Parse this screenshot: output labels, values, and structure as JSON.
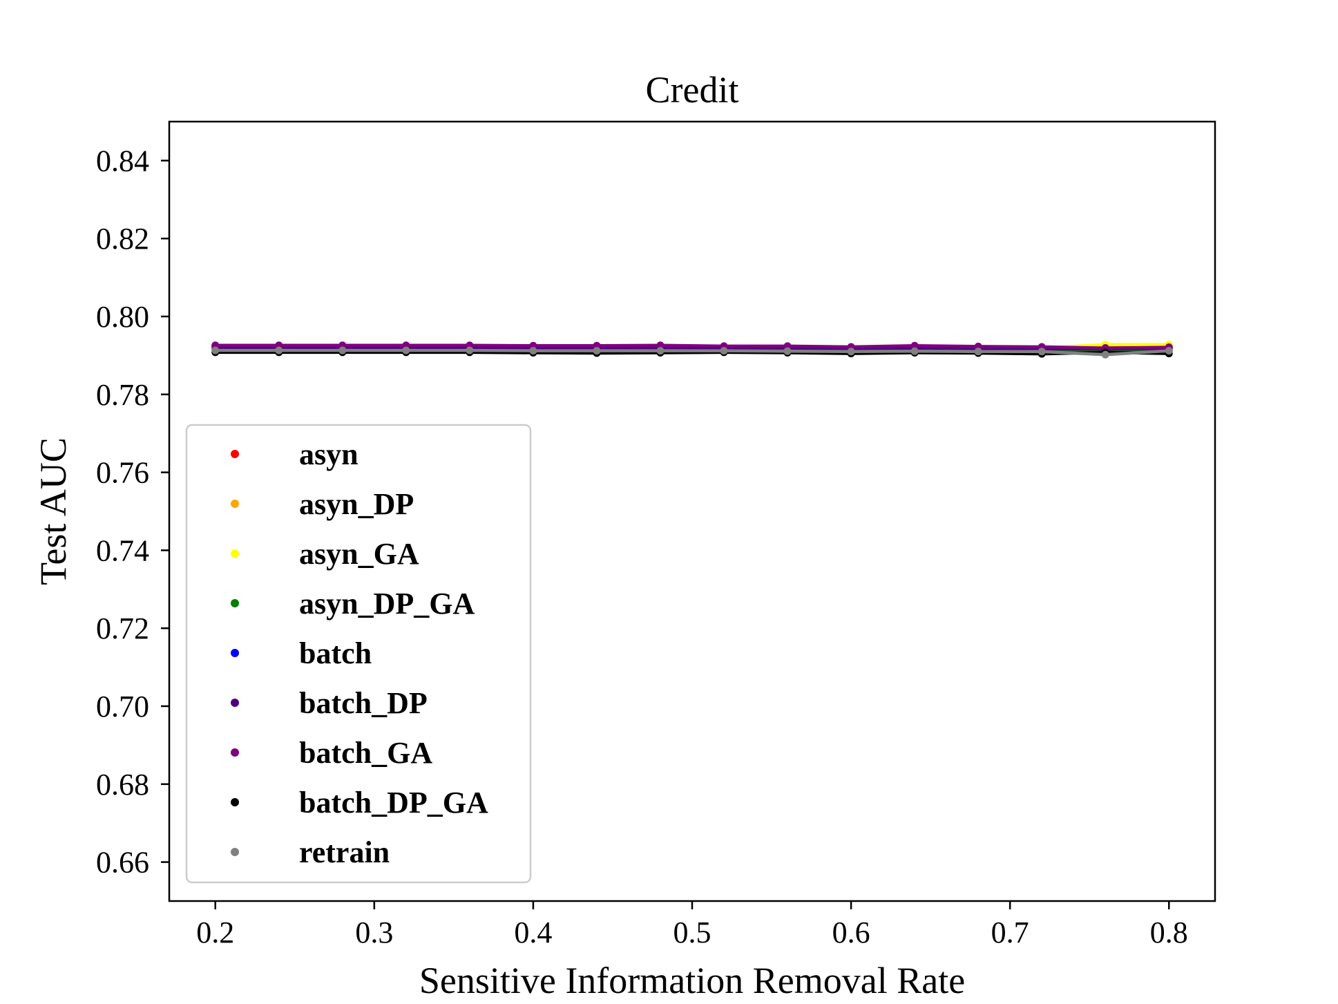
{
  "chart_data": {
    "type": "line",
    "title": "Credit",
    "xlabel": "Sensitive Information Removal Rate",
    "ylabel": "Test AUC",
    "xlim": [
      0.171,
      0.829
    ],
    "ylim": [
      0.65,
      0.85
    ],
    "xticks": [
      0.2,
      0.3,
      0.4,
      0.5,
      0.6,
      0.7,
      0.8
    ],
    "xtick_labels": [
      "0.2",
      "0.3",
      "0.4",
      "0.5",
      "0.6",
      "0.7",
      "0.8"
    ],
    "yticks": [
      0.66,
      0.68,
      0.7,
      0.72,
      0.74,
      0.76,
      0.78,
      0.8,
      0.82,
      0.84
    ],
    "ytick_labels": [
      "0.66",
      "0.68",
      "0.70",
      "0.72",
      "0.74",
      "0.76",
      "0.78",
      "0.80",
      "0.82",
      "0.84"
    ],
    "grid": false,
    "legend_position": "lower-left",
    "x": [
      0.2,
      0.24,
      0.28,
      0.32,
      0.36,
      0.4,
      0.44,
      0.48,
      0.52,
      0.56,
      0.6,
      0.64,
      0.68,
      0.72,
      0.76,
      0.8
    ],
    "series": [
      {
        "name": "asyn",
        "color": "#ff0000",
        "values": [
          0.7925,
          0.7925,
          0.7925,
          0.7925,
          0.7925,
          0.7923,
          0.7923,
          0.7924,
          0.7922,
          0.7922,
          0.792,
          0.7922,
          0.7921,
          0.792,
          0.792,
          0.7921
        ]
      },
      {
        "name": "asyn_DP",
        "color": "#ffa500",
        "values": [
          0.7922,
          0.7922,
          0.7922,
          0.7922,
          0.7922,
          0.7921,
          0.7921,
          0.7921,
          0.792,
          0.792,
          0.7918,
          0.792,
          0.792,
          0.7918,
          0.7925,
          0.7925
        ]
      },
      {
        "name": "asyn_GA",
        "color": "#ffff00",
        "values": [
          0.7923,
          0.7923,
          0.7923,
          0.7923,
          0.7923,
          0.7922,
          0.7922,
          0.7922,
          0.7921,
          0.7921,
          0.7919,
          0.7921,
          0.7921,
          0.7919,
          0.7928,
          0.7928
        ]
      },
      {
        "name": "asyn_DP_GA",
        "color": "#008000",
        "values": [
          0.7915,
          0.7915,
          0.7915,
          0.7915,
          0.7915,
          0.7914,
          0.7914,
          0.7914,
          0.7914,
          0.7913,
          0.7912,
          0.7913,
          0.7912,
          0.7911,
          0.791,
          0.7912
        ]
      },
      {
        "name": "batch",
        "color": "#0000ff",
        "values": [
          0.7924,
          0.7924,
          0.7924,
          0.7924,
          0.7924,
          0.7923,
          0.7923,
          0.7923,
          0.7922,
          0.7922,
          0.792,
          0.7922,
          0.7921,
          0.792,
          0.7919,
          0.792
        ]
      },
      {
        "name": "batch_DP",
        "color": "#4b0082",
        "values": [
          0.7921,
          0.7921,
          0.7921,
          0.7921,
          0.7921,
          0.792,
          0.792,
          0.792,
          0.7919,
          0.7919,
          0.7918,
          0.7919,
          0.7918,
          0.7917,
          0.7917,
          0.7918
        ]
      },
      {
        "name": "batch_GA",
        "color": "#800080",
        "values": [
          0.7926,
          0.7926,
          0.7926,
          0.7926,
          0.7926,
          0.7925,
          0.7925,
          0.7926,
          0.7924,
          0.7924,
          0.7922,
          0.7925,
          0.7923,
          0.7922,
          0.7919,
          0.7921
        ]
      },
      {
        "name": "batch_DP_GA",
        "color": "#000000",
        "values": [
          0.7908,
          0.7908,
          0.7908,
          0.7908,
          0.7908,
          0.7907,
          0.7906,
          0.7907,
          0.7908,
          0.7907,
          0.7905,
          0.7907,
          0.7906,
          0.7904,
          0.7908,
          0.7905
        ]
      },
      {
        "name": "retrain",
        "color": "#808080",
        "values": [
          0.7913,
          0.7913,
          0.7913,
          0.7913,
          0.7913,
          0.7912,
          0.7912,
          0.7912,
          0.7912,
          0.7911,
          0.791,
          0.7911,
          0.791,
          0.791,
          0.7902,
          0.7912
        ]
      }
    ]
  }
}
